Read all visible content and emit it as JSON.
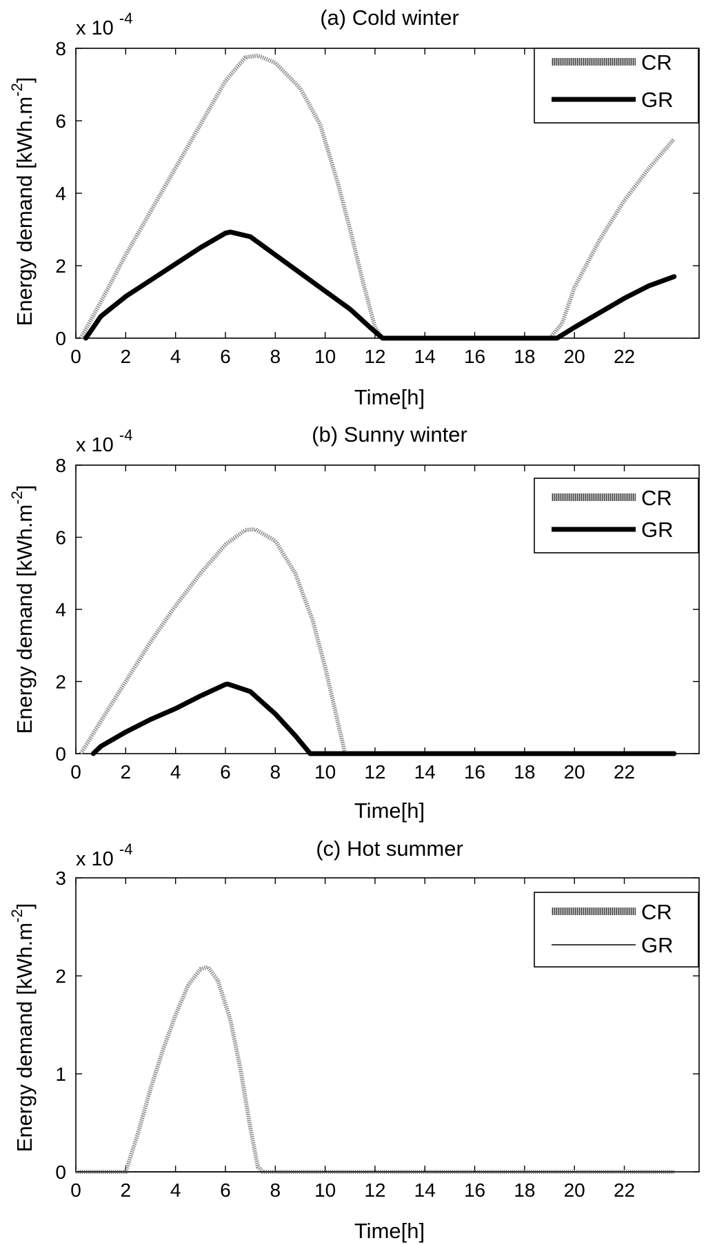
{
  "figure": {
    "charts": [
      {
        "id": "a",
        "title": "(a) Cold winter",
        "xlabel": "Time[h]",
        "ylabel": "Energy demand [kWh.m",
        "ylabel_sup": "-2",
        "ylabel_close": "]",
        "scale_prefix": "x 10",
        "scale_exp": "-4"
      },
      {
        "id": "b",
        "title": "(b) Sunny winter",
        "xlabel": "Time[h]",
        "ylabel": "Energy demand [kWh.m",
        "ylabel_sup": "-2",
        "ylabel_close": "]",
        "scale_prefix": "x 10",
        "scale_exp": "-4"
      },
      {
        "id": "c",
        "title": "(c) Hot summer",
        "xlabel": "Time[h]",
        "ylabel": "Energy demand [kWh.m",
        "ylabel_sup": "-2",
        "ylabel_close": "]",
        "scale_prefix": "x 10",
        "scale_exp": "-4"
      }
    ]
  },
  "chart_data": [
    {
      "type": "line",
      "title": "(a) Cold winter",
      "xlabel": "Time[h]",
      "ylabel": "Energy demand [kWh.m-2]",
      "y_scale": "x 10^-4",
      "xlim": [
        0,
        25
      ],
      "ylim": [
        0,
        8
      ],
      "xticks": [
        0,
        2,
        4,
        6,
        8,
        10,
        12,
        14,
        16,
        18,
        20,
        22
      ],
      "yticks": [
        0,
        2,
        4,
        6,
        8
      ],
      "legend_position": "top-right",
      "series": [
        {
          "name": "CR",
          "style": "gray-dotted-thick",
          "color": "#8f8f8f",
          "x": [
            0.2,
            1,
            2,
            3,
            4,
            5,
            6,
            6.8,
            7.3,
            8,
            9,
            9.8,
            10.5,
            11,
            11.5,
            12,
            12.3,
            19,
            19.5,
            20,
            21,
            22,
            23,
            24
          ],
          "y": [
            0,
            1.0,
            2.3,
            3.5,
            4.7,
            5.9,
            7.1,
            7.75,
            7.8,
            7.6,
            6.9,
            5.9,
            4.3,
            3.0,
            1.6,
            0.3,
            0,
            0,
            0.4,
            1.4,
            2.7,
            3.8,
            4.7,
            5.5
          ]
        },
        {
          "name": "GR",
          "style": "black-solid-thick",
          "color": "#000000",
          "x": [
            0.4,
            1,
            2,
            3,
            4,
            5,
            6,
            6.2,
            7,
            8,
            9,
            10,
            11,
            11.8,
            12.3,
            19.3,
            20,
            21,
            22,
            23,
            24
          ],
          "y": [
            0,
            0.6,
            1.15,
            1.6,
            2.05,
            2.5,
            2.9,
            2.93,
            2.8,
            2.3,
            1.8,
            1.3,
            0.8,
            0.3,
            0,
            0,
            0.3,
            0.7,
            1.1,
            1.45,
            1.7
          ]
        }
      ]
    },
    {
      "type": "line",
      "title": "(b) Sunny winter",
      "xlabel": "Time[h]",
      "ylabel": "Energy demand [kWh.m-2]",
      "y_scale": "x 10^-4",
      "xlim": [
        0,
        25
      ],
      "ylim": [
        0,
        8
      ],
      "xticks": [
        0,
        2,
        4,
        6,
        8,
        10,
        12,
        14,
        16,
        18,
        20,
        22
      ],
      "yticks": [
        0,
        2,
        4,
        6,
        8
      ],
      "legend_position": "top-right",
      "series": [
        {
          "name": "CR",
          "style": "gray-dotted-thick",
          "color": "#8f8f8f",
          "x": [
            0.2,
            1,
            2,
            3,
            4,
            5,
            6,
            6.8,
            7.2,
            8,
            8.8,
            9.5,
            10,
            10.4,
            10.8,
            24
          ],
          "y": [
            0,
            0.9,
            2.0,
            3.1,
            4.1,
            5.0,
            5.8,
            6.2,
            6.22,
            5.9,
            5.0,
            3.7,
            2.4,
            1.2,
            0,
            0
          ]
        },
        {
          "name": "GR",
          "style": "black-solid-thick",
          "color": "#000000",
          "x": [
            0.7,
            1,
            2,
            3,
            4,
            5,
            6,
            6.1,
            7,
            8,
            8.8,
            9.4,
            24
          ],
          "y": [
            0,
            0.2,
            0.6,
            0.95,
            1.25,
            1.6,
            1.92,
            1.93,
            1.72,
            1.1,
            0.5,
            0,
            0
          ]
        }
      ]
    },
    {
      "type": "line",
      "title": "(c) Hot summer",
      "xlabel": "Time[h]",
      "ylabel": "Energy demand [kWh.m-2]",
      "y_scale": "x 10^-4",
      "xlim": [
        0,
        25
      ],
      "ylim": [
        0,
        3
      ],
      "xticks": [
        0,
        2,
        4,
        6,
        8,
        10,
        12,
        14,
        16,
        18,
        20,
        22
      ],
      "yticks": [
        0,
        1,
        2,
        3
      ],
      "legend_position": "top-right",
      "series": [
        {
          "name": "CR",
          "style": "gray-dotted-thick",
          "color": "#8f8f8f",
          "x": [
            0,
            2.0,
            2.5,
            3,
            3.5,
            4,
            4.5,
            5,
            5.3,
            5.7,
            6.2,
            6.6,
            7.0,
            7.3,
            7.5,
            24
          ],
          "y": [
            0,
            0,
            0.4,
            0.85,
            1.25,
            1.6,
            1.9,
            2.07,
            2.09,
            1.95,
            1.55,
            1.05,
            0.45,
            0.05,
            0,
            0
          ]
        },
        {
          "name": "GR",
          "style": "black-solid-thin",
          "color": "#000000",
          "x": [
            0,
            24
          ],
          "y": [
            0,
            0
          ]
        }
      ]
    }
  ]
}
